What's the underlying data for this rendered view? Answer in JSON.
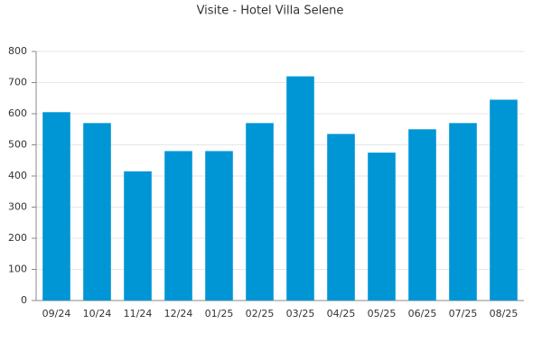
{
  "chart_data": {
    "type": "bar",
    "title": "Visite - Hotel Villa Selene",
    "categories": [
      "09/24",
      "10/24",
      "11/24",
      "12/24",
      "01/25",
      "02/25",
      "03/25",
      "04/25",
      "05/25",
      "06/25",
      "07/25",
      "08/25"
    ],
    "values": [
      605,
      570,
      415,
      480,
      480,
      570,
      720,
      535,
      475,
      550,
      570,
      645
    ],
    "color": "#0095d5",
    "ylim": [
      0,
      800
    ],
    "yticks": [
      0,
      100,
      200,
      300,
      400,
      500,
      600,
      700,
      800
    ],
    "grid": true
  }
}
